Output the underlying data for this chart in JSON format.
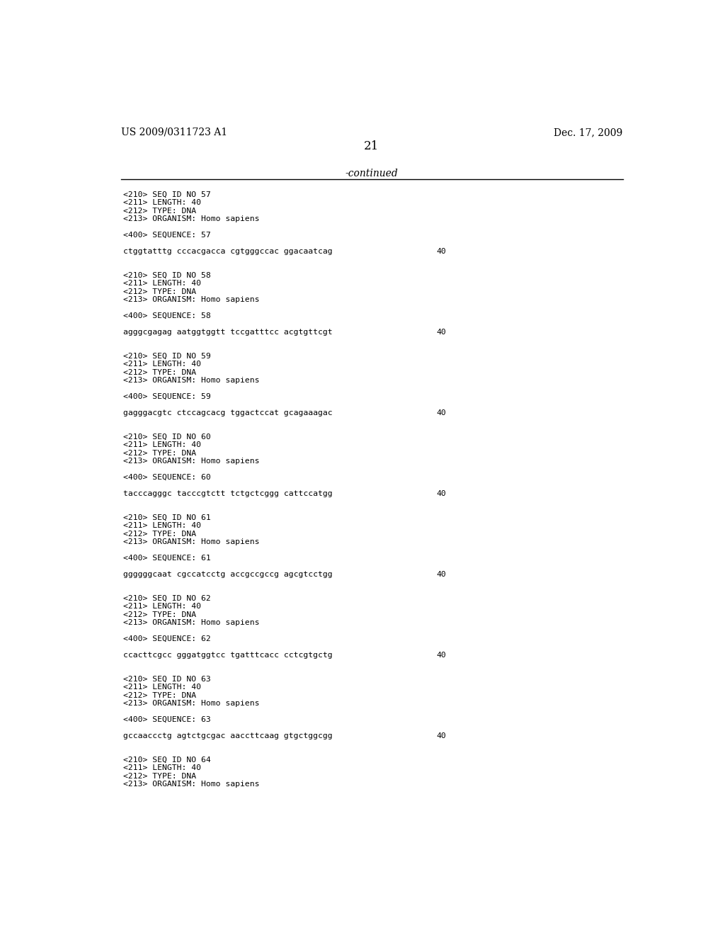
{
  "header_left": "US 2009/0311723 A1",
  "header_right": "Dec. 17, 2009",
  "page_number": "21",
  "continued_label": "-continued",
  "background_color": "#ffffff",
  "text_color": "#000000",
  "line_color": "#000000",
  "header_fontsize": 10,
  "mono_fontsize": 8.2,
  "content_blocks": [
    {
      "meta": [
        "<210> SEQ ID NO 57",
        "<211> LENGTH: 40",
        "<212> TYPE: DNA",
        "<213> ORGANISM: Homo sapiens"
      ],
      "seq_label": "<400> SEQUENCE: 57",
      "sequence": "ctggtatttg cccacgacca cgtgggccac ggacaatcag",
      "seq_num": "40"
    },
    {
      "meta": [
        "<210> SEQ ID NO 58",
        "<211> LENGTH: 40",
        "<212> TYPE: DNA",
        "<213> ORGANISM: Homo sapiens"
      ],
      "seq_label": "<400> SEQUENCE: 58",
      "sequence": "agggcgagag aatggtggtt tccgatttcc acgtgttcgt",
      "seq_num": "40"
    },
    {
      "meta": [
        "<210> SEQ ID NO 59",
        "<211> LENGTH: 40",
        "<212> TYPE: DNA",
        "<213> ORGANISM: Homo sapiens"
      ],
      "seq_label": "<400> SEQUENCE: 59",
      "sequence": "gagggacgtc ctccagcacg tggactccat gcagaaagac",
      "seq_num": "40"
    },
    {
      "meta": [
        "<210> SEQ ID NO 60",
        "<211> LENGTH: 40",
        "<212> TYPE: DNA",
        "<213> ORGANISM: Homo sapiens"
      ],
      "seq_label": "<400> SEQUENCE: 60",
      "sequence": "tacccagggc tacccgtctt tctgctcggg cattccatgg",
      "seq_num": "40"
    },
    {
      "meta": [
        "<210> SEQ ID NO 61",
        "<211> LENGTH: 40",
        "<212> TYPE: DNA",
        "<213> ORGANISM: Homo sapiens"
      ],
      "seq_label": "<400> SEQUENCE: 61",
      "sequence": "ggggggcaat cgccatcctg accgccgccg agcgtcctgg",
      "seq_num": "40"
    },
    {
      "meta": [
        "<210> SEQ ID NO 62",
        "<211> LENGTH: 40",
        "<212> TYPE: DNA",
        "<213> ORGANISM: Homo sapiens"
      ],
      "seq_label": "<400> SEQUENCE: 62",
      "sequence": "ccacttcgcc gggatggtcc tgatttcacc cctcgtgctg",
      "seq_num": "40"
    },
    {
      "meta": [
        "<210> SEQ ID NO 63",
        "<211> LENGTH: 40",
        "<212> TYPE: DNA",
        "<213> ORGANISM: Homo sapiens"
      ],
      "seq_label": "<400> SEQUENCE: 63",
      "sequence": "gccaaccctg agtctgcgac aaccttcaag gtgctggcgg",
      "seq_num": "40"
    },
    {
      "meta": [
        "<210> SEQ ID NO 64",
        "<211> LENGTH: 40",
        "<212> TYPE: DNA",
        "<213> ORGANISM: Homo sapiens"
      ],
      "seq_label": null,
      "sequence": null,
      "seq_num": null
    }
  ]
}
